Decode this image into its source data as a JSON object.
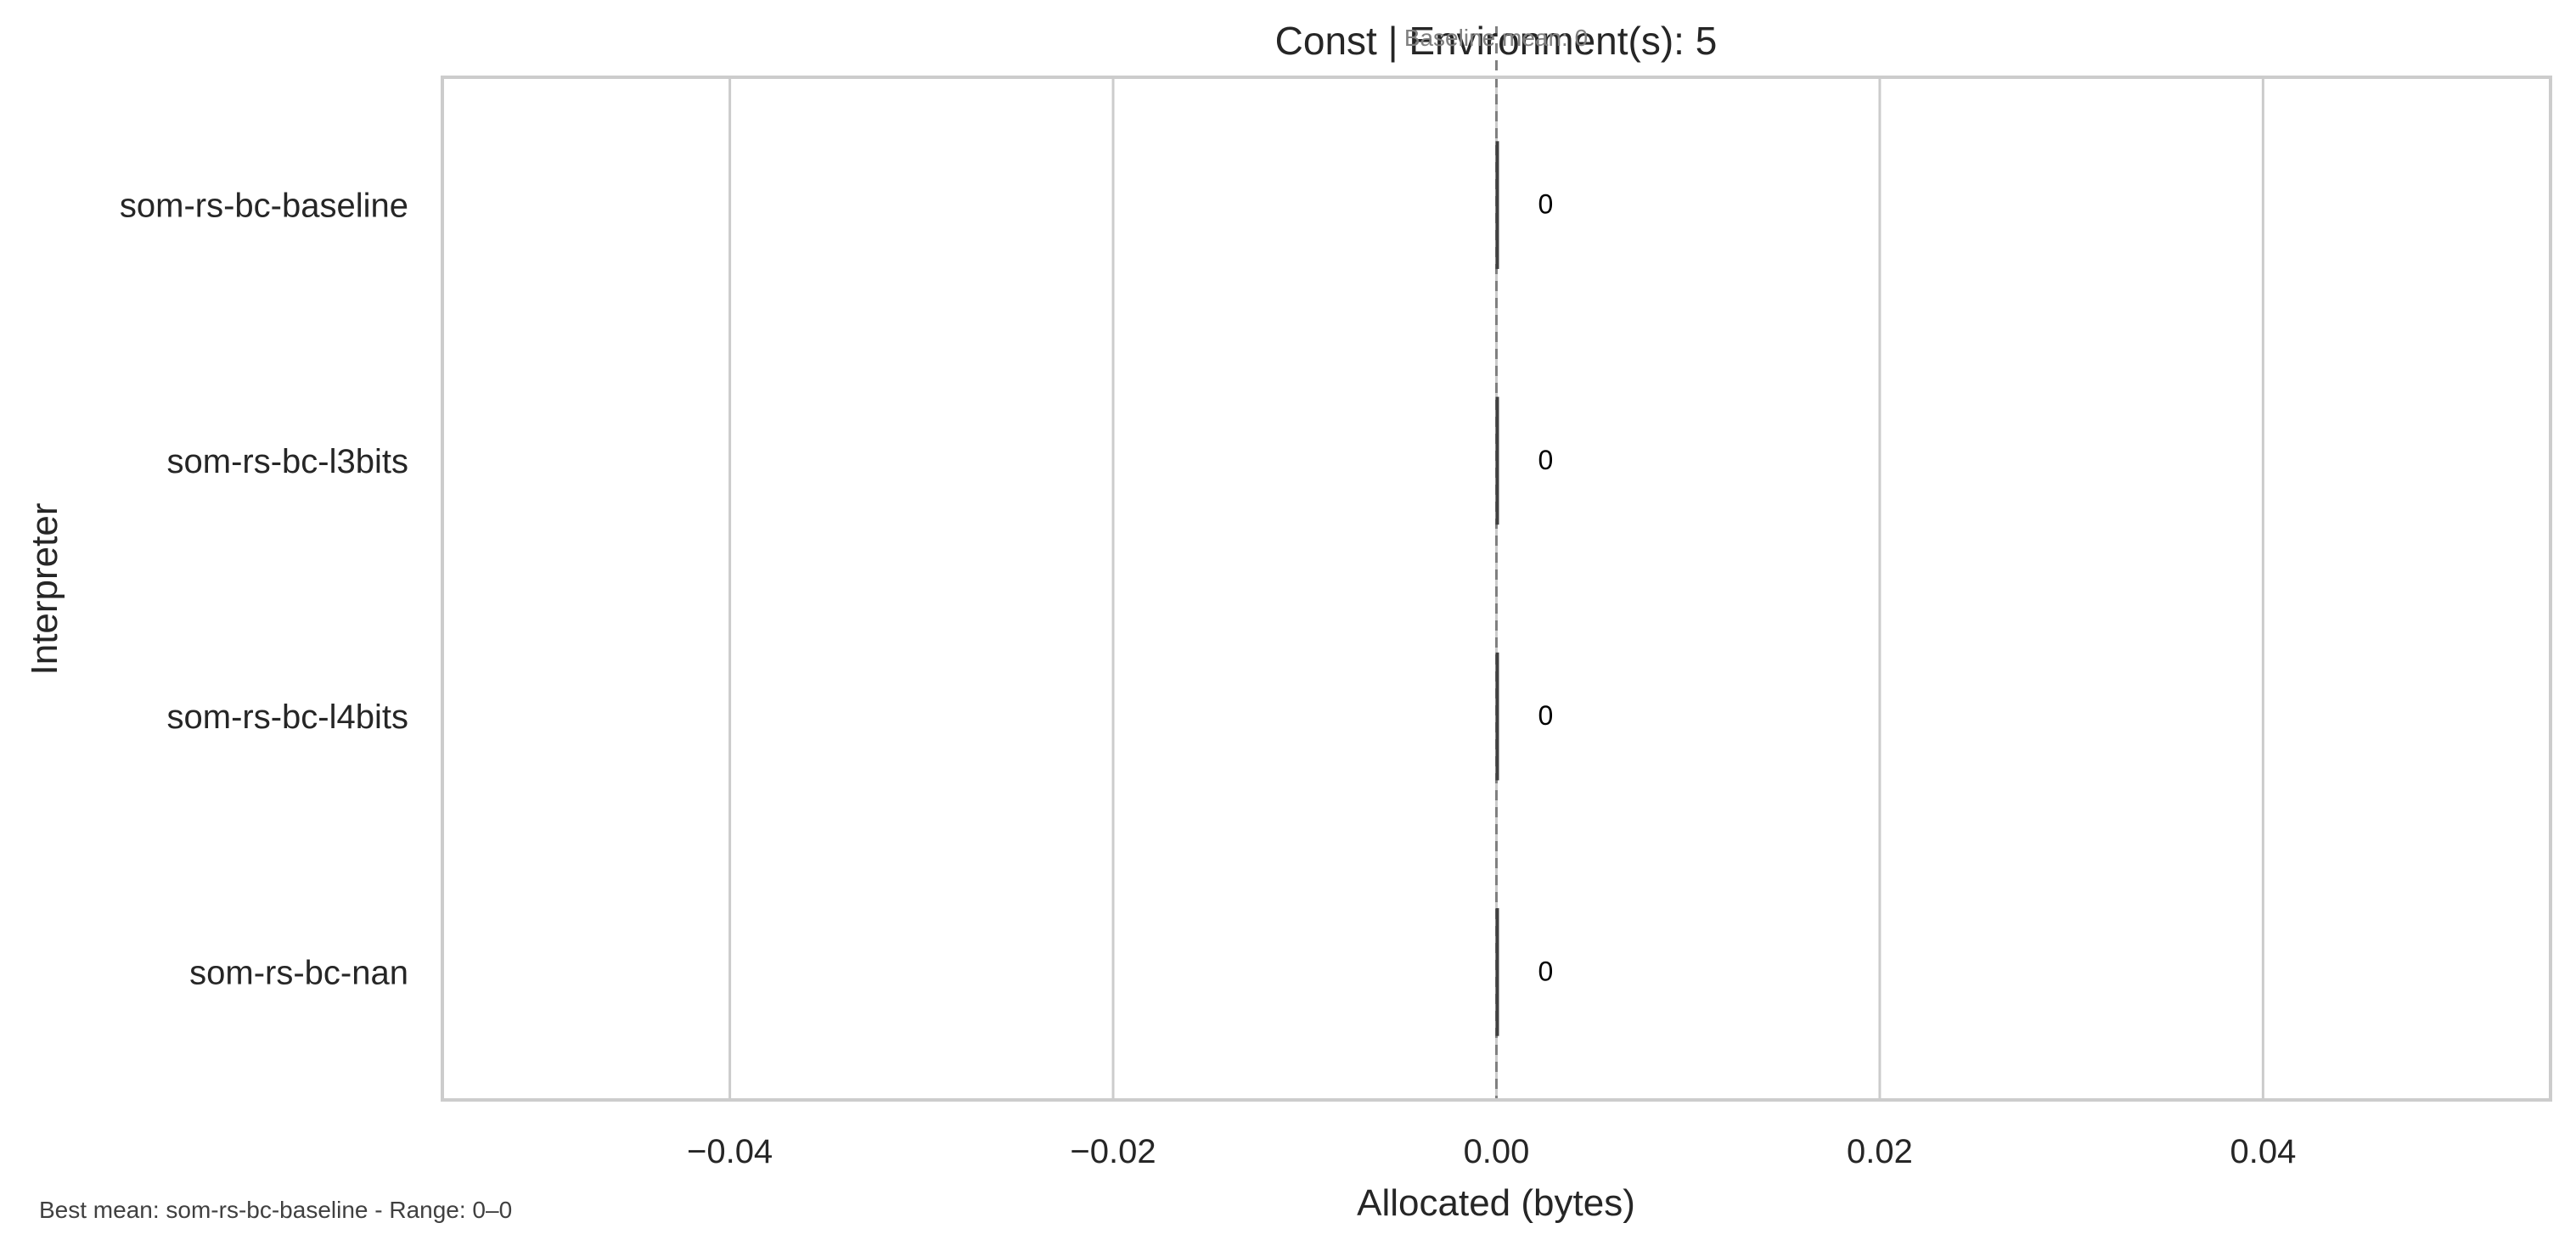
{
  "chart_data": {
    "type": "bar",
    "orientation": "horizontal",
    "title": "Const | Environment(s): 5",
    "xlabel": "Allocated (bytes)",
    "ylabel": "Interpreter",
    "categories": [
      "som-rs-bc-baseline",
      "som-rs-bc-l3bits",
      "som-rs-bc-l4bits",
      "som-rs-bc-nan"
    ],
    "values": [
      0,
      0,
      0,
      0
    ],
    "data_labels": [
      "0",
      "0",
      "0",
      "0"
    ],
    "xlim": [
      -0.055,
      0.055
    ],
    "xticks": [
      -0.04,
      -0.02,
      0.0,
      0.02,
      0.04
    ],
    "xtick_labels": [
      "−0.04",
      "−0.02",
      "0.00",
      "0.02",
      "0.04"
    ],
    "grid": "vertical",
    "baseline": {
      "value": 0,
      "label": "Baseline mean: 0"
    },
    "footer": "Best mean: som-rs-bc-baseline - Range: 0–0",
    "colors": {
      "grid": "#cccccc",
      "frame": "#cccccc",
      "baseline": "#808080",
      "bar_edge": "#404040"
    }
  }
}
